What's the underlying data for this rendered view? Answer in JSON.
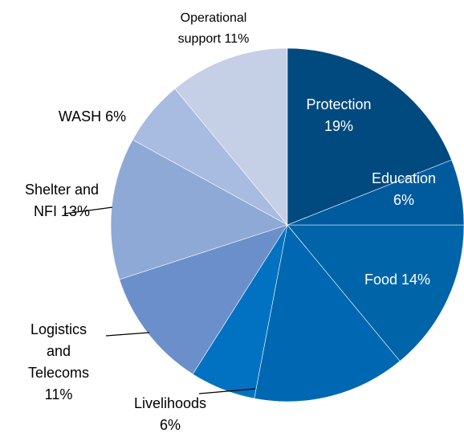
{
  "chart_data": {
    "type": "pie",
    "categories": [
      "Protection",
      "Education",
      "Food",
      null,
      "Livelihoods",
      "Logistics and Telecoms",
      "Shelter and NFI",
      "WASH",
      "Operational support"
    ],
    "values": [
      19,
      6,
      14,
      14,
      6,
      11,
      13,
      6,
      11
    ],
    "value_labels": [
      "19%",
      "6%",
      "14%",
      null,
      "6%",
      "11%",
      "13%",
      "6%",
      "11%"
    ],
    "colors": [
      "#004a80",
      "#005b9e",
      "#0064a9",
      "#0068b2",
      "#0072c1",
      "#6b8fca",
      "#8ea9d6",
      "#a8bbe0",
      "#c5d0e6"
    ]
  }
}
